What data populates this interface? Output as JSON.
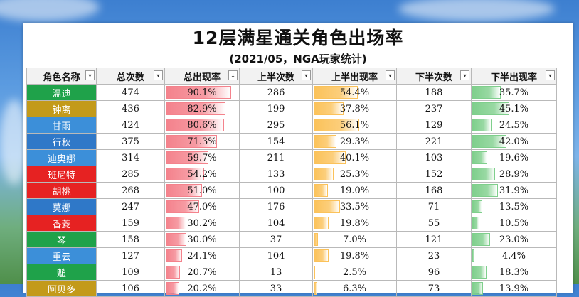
{
  "title": "12层满星通关角色出场率",
  "subtitle": "(2021/05，NGA玩家统计)",
  "headers": [
    "角色名称",
    "总次数",
    "总出现率",
    "上半次数",
    "上半出现率",
    "下半次数",
    "下半出现率"
  ],
  "filter_icons": [
    "▾",
    "▾",
    "↓",
    "▾",
    "▾",
    "▾",
    "▾"
  ],
  "colors": {
    "total_bar": "#f4828c",
    "upper_bar": "#fbc25a",
    "lower_bar": "#7fcf8c"
  },
  "rows": [
    {
      "name": "温迪",
      "color": "#1fa24a",
      "total": "474",
      "total_rate": "90.1%",
      "total_frac": 0.901,
      "upper": "286",
      "upper_rate": "54.4%",
      "upper_frac": 0.544,
      "lower": "188",
      "lower_rate": "35.7%",
      "lower_frac": 0.357
    },
    {
      "name": "钟离",
      "color": "#c39a1a",
      "total": "436",
      "total_rate": "82.9%",
      "total_frac": 0.829,
      "upper": "199",
      "upper_rate": "37.8%",
      "upper_frac": 0.378,
      "lower": "237",
      "lower_rate": "45.1%",
      "lower_frac": 0.451
    },
    {
      "name": "甘雨",
      "color": "#3c8fd9",
      "total": "424",
      "total_rate": "80.6%",
      "total_frac": 0.806,
      "upper": "295",
      "upper_rate": "56.1%",
      "upper_frac": 0.561,
      "lower": "129",
      "lower_rate": "24.5%",
      "lower_frac": 0.245
    },
    {
      "name": "行秋",
      "color": "#2f78c8",
      "total": "375",
      "total_rate": "71.3%",
      "total_frac": 0.713,
      "upper": "154",
      "upper_rate": "29.3%",
      "upper_frac": 0.293,
      "lower": "221",
      "lower_rate": "42.0%",
      "lower_frac": 0.42
    },
    {
      "name": "迪奥娜",
      "color": "#3c8fd9",
      "total": "314",
      "total_rate": "59.7%",
      "total_frac": 0.597,
      "upper": "211",
      "upper_rate": "40.1%",
      "upper_frac": 0.401,
      "lower": "103",
      "lower_rate": "19.6%",
      "lower_frac": 0.196
    },
    {
      "name": "班尼特",
      "color": "#e62222",
      "total": "285",
      "total_rate": "54.2%",
      "total_frac": 0.542,
      "upper": "133",
      "upper_rate": "25.3%",
      "upper_frac": 0.253,
      "lower": "152",
      "lower_rate": "28.9%",
      "lower_frac": 0.289
    },
    {
      "name": "胡桃",
      "color": "#e62222",
      "total": "268",
      "total_rate": "51.0%",
      "total_frac": 0.51,
      "upper": "100",
      "upper_rate": "19.0%",
      "upper_frac": 0.19,
      "lower": "168",
      "lower_rate": "31.9%",
      "lower_frac": 0.319
    },
    {
      "name": "莫娜",
      "color": "#2f78c8",
      "total": "247",
      "total_rate": "47.0%",
      "total_frac": 0.47,
      "upper": "176",
      "upper_rate": "33.5%",
      "upper_frac": 0.335,
      "lower": "71",
      "lower_rate": "13.5%",
      "lower_frac": 0.135
    },
    {
      "name": "香菱",
      "color": "#e62222",
      "total": "159",
      "total_rate": "30.2%",
      "total_frac": 0.302,
      "upper": "104",
      "upper_rate": "19.8%",
      "upper_frac": 0.198,
      "lower": "55",
      "lower_rate": "10.5%",
      "lower_frac": 0.105
    },
    {
      "name": "琴",
      "color": "#1fa24a",
      "total": "158",
      "total_rate": "30.0%",
      "total_frac": 0.3,
      "upper": "37",
      "upper_rate": "7.0%",
      "upper_frac": 0.07,
      "lower": "121",
      "lower_rate": "23.0%",
      "lower_frac": 0.23
    },
    {
      "name": "重云",
      "color": "#3c8fd9",
      "total": "127",
      "total_rate": "24.1%",
      "total_frac": 0.241,
      "upper": "104",
      "upper_rate": "19.8%",
      "upper_frac": 0.198,
      "lower": "23",
      "lower_rate": "4.4%",
      "lower_frac": 0.044
    },
    {
      "name": "魈",
      "color": "#1fa24a",
      "total": "109",
      "total_rate": "20.7%",
      "total_frac": 0.207,
      "upper": "13",
      "upper_rate": "2.5%",
      "upper_frac": 0.025,
      "lower": "96",
      "lower_rate": "18.3%",
      "lower_frac": 0.183
    },
    {
      "name": "阿贝多",
      "color": "#c39a1a",
      "total": "106",
      "total_rate": "20.2%",
      "total_frac": 0.202,
      "upper": "33",
      "upper_rate": "6.3%",
      "upper_frac": 0.063,
      "lower": "73",
      "lower_rate": "13.9%",
      "lower_frac": 0.139
    }
  ]
}
